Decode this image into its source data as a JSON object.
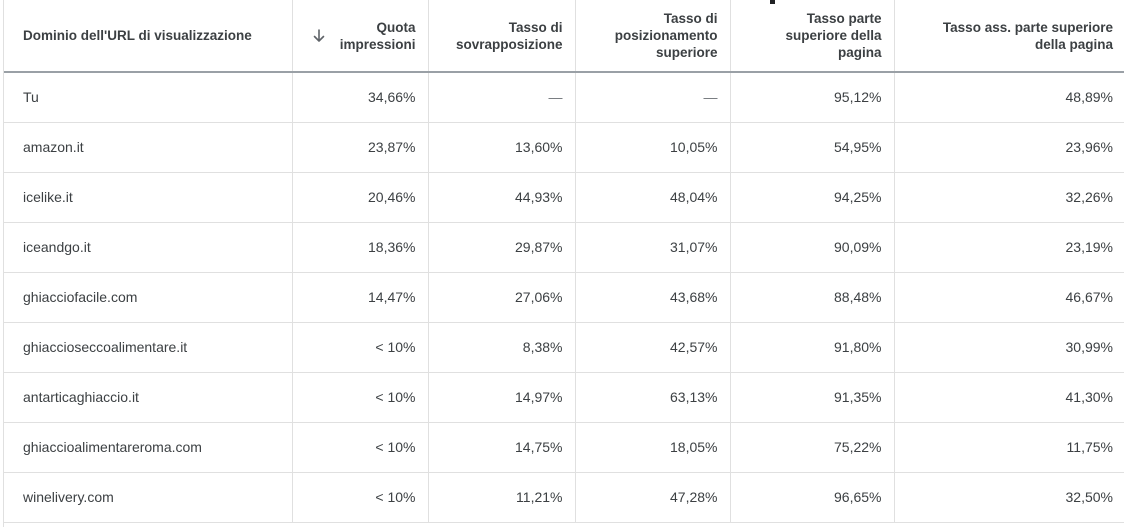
{
  "columns": [
    {
      "label": "Dominio dell'URL di visualizzazione"
    },
    {
      "label": "Quota impressioni",
      "sort_icon": "arrow-down-icon",
      "sort_glyph": "↓"
    },
    {
      "label": "Tasso di sovrapposizione"
    },
    {
      "label": "Tasso di posizionamento superiore"
    },
    {
      "label": "Tasso parte superiore della pagina"
    },
    {
      "label": "Tasso ass. parte superiore della pagina"
    }
  ],
  "rows": [
    [
      "Tu",
      "34,66%",
      "—",
      "—",
      "95,12%",
      "48,89%"
    ],
    [
      "amazon.it",
      "23,87%",
      "13,60%",
      "10,05%",
      "54,95%",
      "23,96%"
    ],
    [
      "icelike.it",
      "20,46%",
      "44,93%",
      "48,04%",
      "94,25%",
      "32,26%"
    ],
    [
      "iceandgo.it",
      "18,36%",
      "29,87%",
      "31,07%",
      "90,09%",
      "23,19%"
    ],
    [
      "ghiacciofacile.com",
      "14,47%",
      "27,06%",
      "43,68%",
      "88,48%",
      "46,67%"
    ],
    [
      "ghiaccioseccoalimentare.it",
      "< 10%",
      "8,38%",
      "42,57%",
      "91,80%",
      "30,99%"
    ],
    [
      "antarticaghiaccio.it",
      "< 10%",
      "14,97%",
      "63,13%",
      "91,35%",
      "41,30%"
    ],
    [
      "ghiaccioalimentareroma.com",
      "< 10%",
      "14,75%",
      "18,05%",
      "75,22%",
      "11,75%"
    ],
    [
      "winelivery.com",
      "< 10%",
      "11,21%",
      "47,28%",
      "96,65%",
      "32,50%"
    ]
  ]
}
